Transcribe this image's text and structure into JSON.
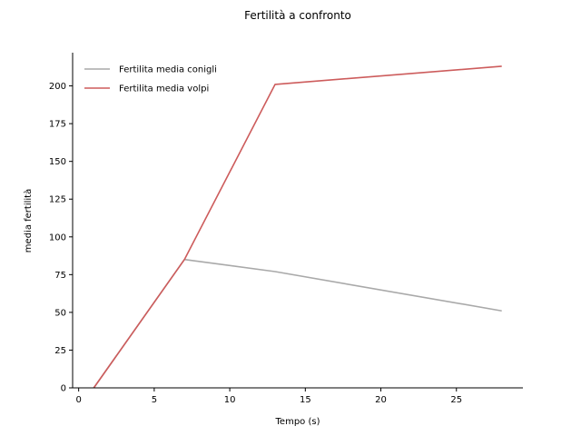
{
  "chart_data": {
    "type": "line",
    "title": "Fertilità a confronto",
    "xlabel": "Tempo (s)",
    "ylabel": "media fertilità",
    "xlim": [
      -0.4,
      29.4
    ],
    "ylim": [
      0,
      222
    ],
    "xticks": [
      0,
      5,
      10,
      15,
      20,
      25
    ],
    "yticks": [
      0,
      25,
      50,
      75,
      100,
      125,
      150,
      175,
      200
    ],
    "grid": false,
    "legend_position": "top-left",
    "series": [
      {
        "name": "Fertilita media conigli",
        "color": "#a9a9a9",
        "x": [
          1,
          7,
          13,
          28
        ],
        "y": [
          0,
          85,
          77,
          51
        ]
      },
      {
        "name": "Fertilita media volpi",
        "color": "#cd5c5c",
        "x": [
          1,
          7,
          13,
          28
        ],
        "y": [
          0,
          85,
          201,
          213
        ]
      }
    ]
  }
}
